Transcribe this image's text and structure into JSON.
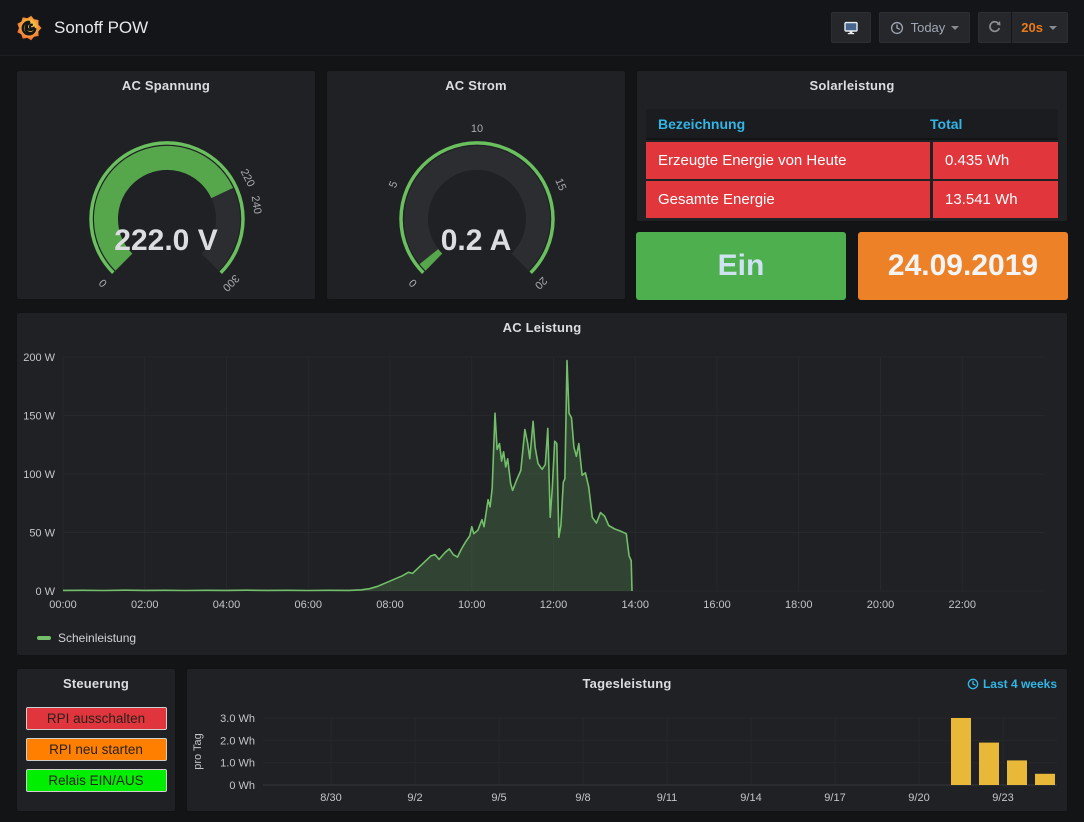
{
  "colors": {
    "page_bg": "#131416",
    "panel_bg": "#1f2124",
    "accent_blue": "#33b5e5",
    "table_red": "#e0363c",
    "relais_green": "#4daf4e",
    "date_orange": "#ed8128",
    "series_green": "#73bf69",
    "bar_yellow": "#eab839",
    "refresh_orange": "#eb7b18"
  },
  "navbar": {
    "title": "Sonoff POW",
    "logo_icon": "grafana-logo-icon",
    "kiosk_button_icon": "monitor-icon",
    "time_picker": {
      "icon": "clock-icon",
      "label": "Today",
      "caret_icon": "chevron-down-icon"
    },
    "refresh": {
      "icon": "refresh-icon",
      "interval": "20s",
      "caret_icon": "chevron-down-icon"
    }
  },
  "panels": {
    "solarleistung": {
      "title": "Solarleistung",
      "columns": [
        "Bezeichnung",
        "Total"
      ],
      "rows": [
        {
          "bezeichnung": "Erzeugte Energie von Heute",
          "total": "0.435 Wh"
        },
        {
          "bezeichnung": "Gesamte Energie",
          "total": "13.541 Wh"
        }
      ]
    },
    "relais_status": {
      "value": "Ein",
      "bg": "#4daf4e"
    },
    "datum": {
      "value": "24.09.2019",
      "bg": "#ed8128"
    },
    "steuerung": {
      "title": "Steuerung",
      "buttons": [
        {
          "name": "rpi-ausschalten-button",
          "label": "RPI ausschalten",
          "bg": "#e0353c"
        },
        {
          "name": "rpi-neu-starten-button",
          "label": "RPI neu starten",
          "bg": "#ff8000"
        },
        {
          "name": "relais-ein-aus-button",
          "label": "Relais EIN/AUS",
          "bg": "#00ee00"
        }
      ]
    },
    "tagesleistung": {
      "time_link": "Last 4 weeks",
      "time_link_icon": "clock-icon"
    }
  },
  "chart_data": [
    {
      "type": "gauge",
      "title": "AC Spannung",
      "value": 222,
      "min": 0,
      "max": 300,
      "unit": "V",
      "display": "222.0 V",
      "tick_labels": [
        0,
        220,
        240,
        300
      ],
      "value_color": "#56a64b",
      "ring_color": "#6abf5e"
    },
    {
      "type": "gauge",
      "title": "AC Strom",
      "value": 0.2,
      "min": 0,
      "max": 20,
      "unit": "A",
      "display": "0.2 A",
      "tick_labels": [
        0,
        5,
        10,
        15,
        20
      ],
      "value_color": "#56a64b",
      "ring_color": "#6abf5e"
    },
    {
      "type": "line",
      "title": "AC Leistung",
      "unit": "W",
      "ylim": [
        0,
        200
      ],
      "x_range_hours": [
        0,
        24
      ],
      "grid": true,
      "legend_position": "bottom-left",
      "yticks": [
        {
          "v": 0,
          "label": "0 W"
        },
        {
          "v": 50,
          "label": "50 W"
        },
        {
          "v": 100,
          "label": "100 W"
        },
        {
          "v": 150,
          "label": "150 W"
        },
        {
          "v": 200,
          "label": "200 W"
        }
      ],
      "xticks": [
        {
          "h": 0,
          "label": "00:00"
        },
        {
          "h": 2,
          "label": "02:00"
        },
        {
          "h": 4,
          "label": "04:00"
        },
        {
          "h": 6,
          "label": "06:00"
        },
        {
          "h": 8,
          "label": "08:00"
        },
        {
          "h": 10,
          "label": "10:00"
        },
        {
          "h": 12,
          "label": "12:00"
        },
        {
          "h": 14,
          "label": "14:00"
        },
        {
          "h": 16,
          "label": "16:00"
        },
        {
          "h": 18,
          "label": "18:00"
        },
        {
          "h": 20,
          "label": "20:00"
        },
        {
          "h": 22,
          "label": "22:00"
        }
      ],
      "series": [
        {
          "name": "Scheinleistung",
          "color": "#73bf69",
          "fill": "rgba(115,191,105,0.22)",
          "points": [
            [
              0,
              0.5
            ],
            [
              0.5,
              0.6
            ],
            [
              1,
              0.4
            ],
            [
              1.5,
              0.7
            ],
            [
              2,
              0.5
            ],
            [
              2.5,
              0.6
            ],
            [
              3,
              0.4
            ],
            [
              3.5,
              0.6
            ],
            [
              4,
              0.5
            ],
            [
              4.5,
              0.7
            ],
            [
              5,
              0.5
            ],
            [
              5.5,
              0.6
            ],
            [
              6,
              0.4
            ],
            [
              6.5,
              0.6
            ],
            [
              7,
              0.5
            ],
            [
              7.3,
              1
            ],
            [
              7.5,
              2
            ],
            [
              7.7,
              4
            ],
            [
              7.9,
              7
            ],
            [
              8.1,
              10
            ],
            [
              8.3,
              13
            ],
            [
              8.45,
              16
            ],
            [
              8.55,
              15
            ],
            [
              8.7,
              20
            ],
            [
              8.85,
              25
            ],
            [
              9,
              30
            ],
            [
              9.1,
              31
            ],
            [
              9.2,
              27
            ],
            [
              9.35,
              33
            ],
            [
              9.45,
              36
            ],
            [
              9.55,
              31
            ],
            [
              9.65,
              29
            ],
            [
              9.75,
              36
            ],
            [
              9.85,
              42
            ],
            [
              9.95,
              47
            ],
            [
              10,
              55
            ],
            [
              10.05,
              49
            ],
            [
              10.15,
              52
            ],
            [
              10.25,
              61
            ],
            [
              10.3,
              55
            ],
            [
              10.4,
              78
            ],
            [
              10.45,
              72
            ],
            [
              10.5,
              88
            ],
            [
              10.57,
              152
            ],
            [
              10.62,
              121
            ],
            [
              10.68,
              126
            ],
            [
              10.73,
              111
            ],
            [
              10.78,
              119
            ],
            [
              10.83,
              106
            ],
            [
              10.88,
              113
            ],
            [
              10.95,
              92
            ],
            [
              11,
              86
            ],
            [
              11.1,
              95
            ],
            [
              11.2,
              103
            ],
            [
              11.3,
              138
            ],
            [
              11.37,
              126
            ],
            [
              11.42,
              113
            ],
            [
              11.5,
              145
            ],
            [
              11.55,
              123
            ],
            [
              11.62,
              109
            ],
            [
              11.72,
              104
            ],
            [
              11.8,
              108
            ],
            [
              11.86,
              139
            ],
            [
              11.92,
              63
            ],
            [
              11.97,
              88
            ],
            [
              12.03,
              128
            ],
            [
              12.08,
              126
            ],
            [
              12.13,
              46
            ],
            [
              12.18,
              56
            ],
            [
              12.24,
              93
            ],
            [
              12.28,
              96
            ],
            [
              12.33,
              197
            ],
            [
              12.38,
              152
            ],
            [
              12.44,
              148
            ],
            [
              12.5,
              123
            ],
            [
              12.56,
              115
            ],
            [
              12.62,
              126
            ],
            [
              12.7,
              99
            ],
            [
              12.78,
              101
            ],
            [
              12.86,
              89
            ],
            [
              12.95,
              63
            ],
            [
              13.05,
              58
            ],
            [
              13.15,
              67
            ],
            [
              13.25,
              64
            ],
            [
              13.35,
              56
            ],
            [
              13.5,
              53
            ],
            [
              13.65,
              51
            ],
            [
              13.78,
              49
            ],
            [
              13.85,
              30
            ],
            [
              13.9,
              26
            ],
            [
              13.92,
              0
            ]
          ]
        }
      ]
    },
    {
      "type": "bar",
      "title": "Tagesleistung",
      "ylabel": "pro Tag",
      "unit": "Wh",
      "ylim": [
        0,
        3.45
      ],
      "bar_color": "#eab839",
      "grid": true,
      "yticks": [
        {
          "v": 0,
          "label": "0 Wh"
        },
        {
          "v": 1,
          "label": "1.0 Wh"
        },
        {
          "v": 2,
          "label": "2.0 Wh"
        },
        {
          "v": 3,
          "label": "3.0 Wh"
        }
      ],
      "x_domain": {
        "start": "8/28",
        "days": 28
      },
      "xticks": [
        {
          "d": 2,
          "label": "8/30"
        },
        {
          "d": 5,
          "label": "9/2"
        },
        {
          "d": 8,
          "label": "9/5"
        },
        {
          "d": 11,
          "label": "9/8"
        },
        {
          "d": 14,
          "label": "9/11"
        },
        {
          "d": 17,
          "label": "9/14"
        },
        {
          "d": 20,
          "label": "9/17"
        },
        {
          "d": 23,
          "label": "9/20"
        },
        {
          "d": 26,
          "label": "9/23"
        }
      ],
      "bars": [
        {
          "date": "9/21",
          "d": 24,
          "value": 3.0
        },
        {
          "date": "9/22",
          "d": 25,
          "value": 1.9
        },
        {
          "date": "9/23",
          "d": 26,
          "value": 1.1
        },
        {
          "date": "9/24",
          "d": 27,
          "value": 0.5
        }
      ]
    }
  ]
}
